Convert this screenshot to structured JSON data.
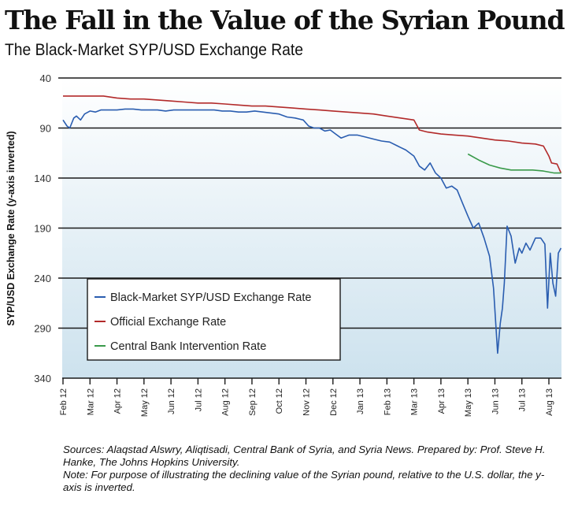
{
  "title": "The Fall in the Value of the Syrian Pound",
  "subtitle": "The Black-Market SYP/USD Exchange Rate",
  "sources_text": "Sources: Alaqstad Alswry, Aliqtisadi, Central Bank of Syria, and Syria News. Prepared by: Prof. Steve H. Hanke, The Johns Hopkins University.",
  "note_text": "Note: For purpose of illustrating the declining value of the Syrian pound, relative to the U.S. dollar, the y-axis is inverted.",
  "chart_data": {
    "type": "line",
    "title": "The Fall in the Value of the Syrian Pound",
    "subtitle": "The Black-Market SYP/USD Exchange Rate",
    "xlabel": "",
    "ylabel": "SYP/USD Exchange Rate (y-axis inverted)",
    "y_inverted": true,
    "ylim": [
      40,
      340
    ],
    "yticks": [
      40,
      90,
      140,
      190,
      240,
      290,
      340
    ],
    "grid": "horizontal",
    "x_unit": "months since Feb 12",
    "xlim": [
      0,
      18.45
    ],
    "xticks": [
      "Feb 12",
      "Mar 12",
      "Apr 12",
      "May 12",
      "Jun 12",
      "Jul 12",
      "Aug 12",
      "Sep 12",
      "Oct 12",
      "Nov 12",
      "Dec 12",
      "Jan 13",
      "Feb 13",
      "Mar 13",
      "Apr 13",
      "May 13",
      "Jun 13",
      "Jul 13",
      "Aug 13"
    ],
    "legend_position": "lower-left",
    "series": [
      {
        "name": "Black-Market SYP/USD Exchange Rate",
        "color": "#2a5db0",
        "x": [
          0,
          0.15,
          0.25,
          0.4,
          0.5,
          0.65,
          0.8,
          1.0,
          1.2,
          1.4,
          1.7,
          2.0,
          2.3,
          2.6,
          2.9,
          3.2,
          3.5,
          3.8,
          4.1,
          4.4,
          4.7,
          5.0,
          5.3,
          5.6,
          5.9,
          6.2,
          6.5,
          6.8,
          7.1,
          7.4,
          7.7,
          8.0,
          8.3,
          8.6,
          8.9,
          9.1,
          9.3,
          9.5,
          9.7,
          9.9,
          10.1,
          10.3,
          10.6,
          10.9,
          11.2,
          11.5,
          11.8,
          12.1,
          12.4,
          12.7,
          13.0,
          13.2,
          13.4,
          13.6,
          13.8,
          14.0,
          14.2,
          14.4,
          14.6,
          14.8,
          15.0,
          15.2,
          15.4,
          15.6,
          15.8,
          15.95,
          16.1,
          16.2,
          16.28,
          16.35,
          16.45,
          16.6,
          16.75,
          16.9,
          17.0,
          17.15,
          17.3,
          17.5,
          17.7,
          17.85,
          17.95,
          18.05,
          18.15,
          18.25,
          18.35,
          18.45
        ],
        "values": [
          82,
          88,
          90,
          80,
          78,
          82,
          76,
          73,
          74,
          72,
          72,
          72,
          71,
          71,
          72,
          72,
          72,
          73,
          72,
          72,
          72,
          72,
          72,
          72,
          73,
          73,
          74,
          74,
          73,
          74,
          75,
          76,
          79,
          80,
          82,
          88,
          90,
          90,
          93,
          92,
          96,
          100,
          97,
          97,
          99,
          101,
          103,
          104,
          108,
          112,
          118,
          128,
          132,
          125,
          135,
          140,
          150,
          148,
          152,
          165,
          178,
          190,
          185,
          200,
          218,
          250,
          315,
          285,
          270,
          245,
          188,
          198,
          225,
          210,
          215,
          205,
          212,
          200,
          200,
          206,
          270,
          215,
          245,
          258,
          215,
          210
        ]
      },
      {
        "name": "Official Exchange Rate",
        "color": "#b22a2a",
        "x": [
          0,
          0.5,
          1.0,
          1.5,
          2.0,
          2.5,
          3.0,
          3.5,
          4.0,
          4.5,
          5.0,
          5.5,
          6.0,
          6.5,
          7.0,
          7.5,
          8.0,
          8.5,
          9.0,
          9.5,
          10.0,
          10.5,
          11.0,
          11.5,
          12.0,
          12.5,
          13.0,
          13.2,
          13.5,
          14.0,
          14.5,
          15.0,
          15.5,
          16.0,
          16.5,
          17.0,
          17.5,
          17.8,
          18.0,
          18.1,
          18.3,
          18.45
        ],
        "values": [
          58,
          58,
          58,
          58,
          60,
          61,
          61,
          62,
          63,
          64,
          65,
          65,
          66,
          67,
          68,
          68,
          69,
          70,
          71,
          72,
          73,
          74,
          75,
          76,
          78,
          80,
          82,
          92,
          94,
          96,
          97,
          98,
          100,
          102,
          103,
          105,
          106,
          108,
          118,
          125,
          126,
          135
        ]
      },
      {
        "name": "Central Bank Intervention Rate",
        "color": "#3a9a4a",
        "x": [
          15.0,
          15.4,
          15.8,
          16.2,
          16.6,
          17.0,
          17.4,
          17.8,
          18.2,
          18.45
        ],
        "values": [
          116,
          122,
          127,
          130,
          132,
          132,
          132,
          133,
          135,
          135
        ]
      }
    ]
  }
}
